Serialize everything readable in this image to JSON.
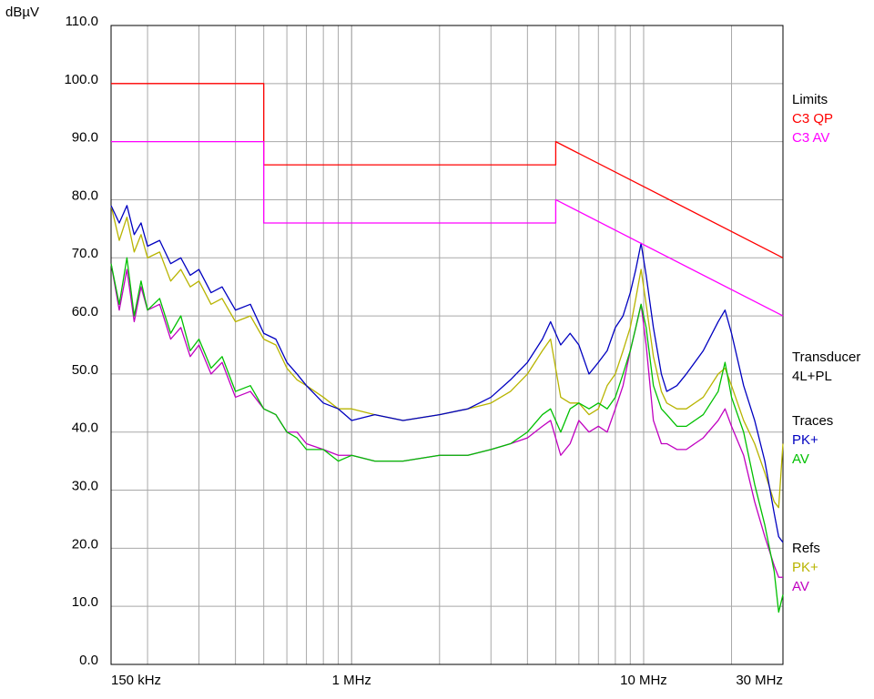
{
  "chart_data": {
    "type": "line",
    "y_unit": "dBµV",
    "log_x": true,
    "grid": true,
    "xlim": [
      0.15,
      30
    ],
    "ylim": [
      0,
      110
    ],
    "xticks": [
      {
        "value": 0.15,
        "label": "150 kHz"
      },
      {
        "value": 1,
        "label": "1 MHz"
      },
      {
        "value": 10,
        "label": "10 MHz"
      },
      {
        "value": 30,
        "label": "30 MHz"
      }
    ],
    "yticks": [
      {
        "value": 0,
        "label": "0.0"
      },
      {
        "value": 10,
        "label": "10.0"
      },
      {
        "value": 20,
        "label": "20.0"
      },
      {
        "value": 30,
        "label": "30.0"
      },
      {
        "value": 40,
        "label": "40.0"
      },
      {
        "value": 50,
        "label": "50.0"
      },
      {
        "value": 60,
        "label": "60.0"
      },
      {
        "value": 70,
        "label": "70.0"
      },
      {
        "value": 80,
        "label": "80.0"
      },
      {
        "value": 90,
        "label": "90.0"
      },
      {
        "value": 100,
        "label": "100.0"
      },
      {
        "value": 110,
        "label": "110.0"
      }
    ],
    "groups": [
      {
        "name": "Limits",
        "series": [
          {
            "name": "C3 QP",
            "color": "#ff0000",
            "x": [
              0.15,
              0.5,
              0.5,
              5,
              5,
              30
            ],
            "values": [
              100,
              100,
              86,
              86,
              90,
              70
            ]
          },
          {
            "name": "C3 AV",
            "color": "#ff00ff",
            "x": [
              0.15,
              0.5,
              0.5,
              5,
              5,
              30
            ],
            "values": [
              90,
              90,
              76,
              76,
              80,
              60
            ]
          }
        ]
      },
      {
        "name": "Transducer",
        "label": "4L+PL"
      },
      {
        "name": "Traces",
        "x": [
          0.15,
          0.16,
          0.17,
          0.18,
          0.19,
          0.2,
          0.22,
          0.24,
          0.26,
          0.28,
          0.3,
          0.33,
          0.36,
          0.4,
          0.45,
          0.5,
          0.55,
          0.6,
          0.65,
          0.7,
          0.8,
          0.9,
          1,
          1.2,
          1.5,
          2,
          2.5,
          3,
          3.5,
          4,
          4.5,
          4.8,
          5.2,
          5.6,
          6,
          6.5,
          7,
          7.5,
          8,
          8.5,
          9,
          9.4,
          9.8,
          10.2,
          10.8,
          11.5,
          12,
          13,
          14,
          16,
          18,
          19,
          20,
          22,
          24,
          26,
          28,
          29,
          30
        ],
        "series": [
          {
            "name": "PK+",
            "color": "#0000c0",
            "values": [
              79,
              76,
              79,
              74,
              76,
              72,
              73,
              69,
              70,
              67,
              68,
              64,
              65,
              61,
              62,
              57,
              56,
              52,
              50,
              48,
              45,
              44,
              42,
              43,
              42,
              43,
              44,
              46,
              49,
              52,
              56,
              59,
              55,
              57,
              55,
              50,
              52,
              54,
              58,
              60,
              64,
              68,
              72.5,
              67,
              58,
              50,
              47,
              48,
              50,
              54,
              59,
              61,
              57,
              48,
              42,
              35,
              26,
              22,
              21
            ]
          },
          {
            "name": "AV",
            "color": "#00c000",
            "values": [
              69,
              62,
              70,
              60,
              66,
              61,
              63,
              57,
              60,
              54,
              56,
              51,
              53,
              47,
              48,
              44,
              43,
              40,
              39,
              37,
              37,
              35,
              36,
              35,
              35,
              36,
              36,
              37,
              38,
              40,
              43,
              44,
              40,
              44,
              45,
              44,
              45,
              44,
              46,
              50,
              54,
              58,
              62,
              58,
              48,
              44,
              43,
              41,
              41,
              43,
              47,
              52,
              46,
              40,
              31,
              24,
              16,
              9,
              12
            ]
          }
        ]
      },
      {
        "name": "Refs",
        "x": [
          0.15,
          0.16,
          0.17,
          0.18,
          0.19,
          0.2,
          0.22,
          0.24,
          0.26,
          0.28,
          0.3,
          0.33,
          0.36,
          0.4,
          0.45,
          0.5,
          0.55,
          0.6,
          0.65,
          0.7,
          0.8,
          0.9,
          1,
          1.2,
          1.5,
          2,
          2.5,
          3,
          3.5,
          4,
          4.5,
          4.8,
          5.2,
          5.6,
          6,
          6.5,
          7,
          7.5,
          8,
          8.5,
          9,
          9.4,
          9.8,
          10.2,
          10.8,
          11.5,
          12,
          13,
          14,
          16,
          18,
          19,
          20,
          22,
          24,
          26,
          28,
          29,
          30
        ],
        "series": [
          {
            "name": "PK+",
            "color": "#b8b400",
            "values": [
              79,
              73,
              77,
              71,
              74,
              70,
              71,
              66,
              68,
              65,
              66,
              62,
              63,
              59,
              60,
              56,
              55,
              51,
              49,
              48,
              46,
              44,
              44,
              43,
              42,
              43,
              44,
              45,
              47,
              50,
              54,
              56,
              46,
              45,
              45,
              43,
              44,
              48,
              50,
              54,
              58,
              63,
              68,
              62,
              53,
              47,
              45,
              44,
              44,
              46,
              50,
              51,
              48,
              42,
              38,
              33,
              28,
              27,
              38
            ]
          },
          {
            "name": "AV",
            "color": "#c000c0",
            "values": [
              69,
              61,
              68,
              59,
              65,
              61,
              62,
              56,
              58,
              53,
              55,
              50,
              52,
              46,
              47,
              44,
              43,
              40,
              40,
              38,
              37,
              36,
              36,
              35,
              35,
              36,
              36,
              37,
              38,
              39,
              41,
              42,
              36,
              38,
              42,
              40,
              41,
              40,
              44,
              48,
              54,
              58,
              62,
              55,
              42,
              38,
              38,
              37,
              37,
              39,
              42,
              44,
              41,
              36,
              28,
              22,
              17,
              15,
              15
            ]
          }
        ]
      }
    ]
  }
}
